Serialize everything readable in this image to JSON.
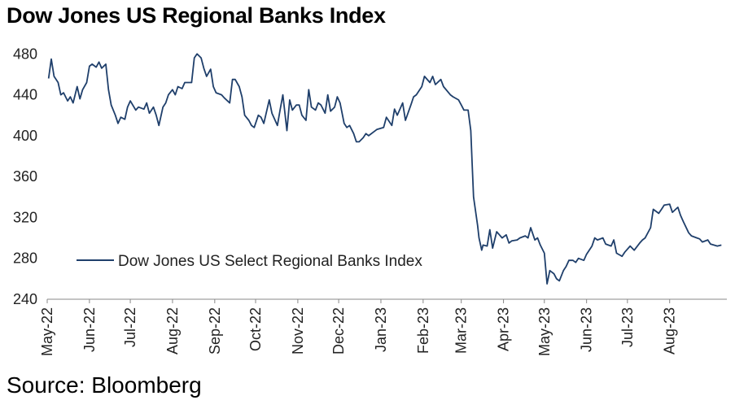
{
  "chart_data": {
    "type": "line",
    "title": "Dow Jones US Regional Banks Index",
    "source": "Source: Bloomberg",
    "ylim": [
      240,
      485
    ],
    "yticks": [
      480,
      440,
      400,
      360,
      320,
      280,
      240
    ],
    "x_range": [
      "2022-05-01",
      "2023-09-12"
    ],
    "xticks": [
      {
        "date": "2022-05-01",
        "label": "May-22"
      },
      {
        "date": "2022-06-01",
        "label": "Jun-22"
      },
      {
        "date": "2022-07-01",
        "label": "Jul-22"
      },
      {
        "date": "2022-08-01",
        "label": "Aug-22"
      },
      {
        "date": "2022-09-01",
        "label": "Sep-22"
      },
      {
        "date": "2022-10-01",
        "label": "Oct-22"
      },
      {
        "date": "2022-11-01",
        "label": "Nov-22"
      },
      {
        "date": "2022-12-01",
        "label": "Dec-22"
      },
      {
        "date": "2023-01-01",
        "label": "Jan-23"
      },
      {
        "date": "2023-02-01",
        "label": "Feb-23"
      },
      {
        "date": "2023-03-01",
        "label": "Mar-23"
      },
      {
        "date": "2023-04-01",
        "label": "Apr-23"
      },
      {
        "date": "2023-05-01",
        "label": "May-23"
      },
      {
        "date": "2023-06-01",
        "label": "Jun-23"
      },
      {
        "date": "2023-07-01",
        "label": "Jul-23"
      },
      {
        "date": "2023-08-01",
        "label": "Aug-23"
      }
    ],
    "grid": false,
    "legend_position": "bottom-left",
    "series": [
      {
        "name": "Dow Jones US Select Regional Banks Index",
        "color": "#1f3f6b",
        "points": [
          [
            "2022-05-02",
            456
          ],
          [
            "2022-05-04",
            475
          ],
          [
            "2022-05-06",
            458
          ],
          [
            "2022-05-09",
            452
          ],
          [
            "2022-05-11",
            440
          ],
          [
            "2022-05-13",
            442
          ],
          [
            "2022-05-16",
            434
          ],
          [
            "2022-05-18",
            438
          ],
          [
            "2022-05-20",
            432
          ],
          [
            "2022-05-23",
            448
          ],
          [
            "2022-05-25",
            436
          ],
          [
            "2022-05-27",
            445
          ],
          [
            "2022-05-30",
            452
          ],
          [
            "2022-06-01",
            468
          ],
          [
            "2022-06-03",
            470
          ],
          [
            "2022-06-06",
            467
          ],
          [
            "2022-06-08",
            472
          ],
          [
            "2022-06-10",
            466
          ],
          [
            "2022-06-13",
            470
          ],
          [
            "2022-06-15",
            445
          ],
          [
            "2022-06-17",
            430
          ],
          [
            "2022-06-20",
            420
          ],
          [
            "2022-06-22",
            412
          ],
          [
            "2022-06-24",
            418
          ],
          [
            "2022-06-27",
            416
          ],
          [
            "2022-06-29",
            428
          ],
          [
            "2022-07-01",
            434
          ],
          [
            "2022-07-05",
            425
          ],
          [
            "2022-07-07",
            428
          ],
          [
            "2022-07-11",
            426
          ],
          [
            "2022-07-13",
            432
          ],
          [
            "2022-07-15",
            422
          ],
          [
            "2022-07-18",
            428
          ],
          [
            "2022-07-20",
            420
          ],
          [
            "2022-07-22",
            410
          ],
          [
            "2022-07-25",
            428
          ],
          [
            "2022-07-27",
            432
          ],
          [
            "2022-07-29",
            440
          ],
          [
            "2022-08-01",
            445
          ],
          [
            "2022-08-03",
            440
          ],
          [
            "2022-08-05",
            448
          ],
          [
            "2022-08-08",
            446
          ],
          [
            "2022-08-10",
            452
          ],
          [
            "2022-08-12",
            452
          ],
          [
            "2022-08-15",
            452
          ],
          [
            "2022-08-17",
            476
          ],
          [
            "2022-08-19",
            480
          ],
          [
            "2022-08-22",
            476
          ],
          [
            "2022-08-24",
            466
          ],
          [
            "2022-08-26",
            458
          ],
          [
            "2022-08-29",
            465
          ],
          [
            "2022-08-31",
            448
          ],
          [
            "2022-09-02",
            442
          ],
          [
            "2022-09-06",
            440
          ],
          [
            "2022-09-08",
            437
          ],
          [
            "2022-09-12",
            432
          ],
          [
            "2022-09-14",
            455
          ],
          [
            "2022-09-16",
            455
          ],
          [
            "2022-09-19",
            448
          ],
          [
            "2022-09-21",
            438
          ],
          [
            "2022-09-23",
            420
          ],
          [
            "2022-09-26",
            415
          ],
          [
            "2022-09-28",
            410
          ],
          [
            "2022-09-30",
            408
          ],
          [
            "2022-10-03",
            420
          ],
          [
            "2022-10-05",
            418
          ],
          [
            "2022-10-07",
            412
          ],
          [
            "2022-10-11",
            435
          ],
          [
            "2022-10-13",
            422
          ],
          [
            "2022-10-17",
            410
          ],
          [
            "2022-10-19",
            425
          ],
          [
            "2022-10-21",
            440
          ],
          [
            "2022-10-24",
            405
          ],
          [
            "2022-10-26",
            435
          ],
          [
            "2022-10-28",
            425
          ],
          [
            "2022-10-31",
            430
          ],
          [
            "2022-11-02",
            430
          ],
          [
            "2022-11-04",
            420
          ],
          [
            "2022-11-07",
            415
          ],
          [
            "2022-11-09",
            445
          ],
          [
            "2022-11-11",
            428
          ],
          [
            "2022-11-14",
            425
          ],
          [
            "2022-11-16",
            432
          ],
          [
            "2022-11-18",
            430
          ],
          [
            "2022-11-21",
            422
          ],
          [
            "2022-11-23",
            440
          ],
          [
            "2022-11-25",
            424
          ],
          [
            "2022-11-28",
            428
          ],
          [
            "2022-11-30",
            438
          ],
          [
            "2022-12-02",
            432
          ],
          [
            "2022-12-05",
            412
          ],
          [
            "2022-12-07",
            408
          ],
          [
            "2022-12-09",
            410
          ],
          [
            "2022-12-12",
            402
          ],
          [
            "2022-12-14",
            394
          ],
          [
            "2022-12-16",
            394
          ],
          [
            "2022-12-19",
            398
          ],
          [
            "2022-12-21",
            402
          ],
          [
            "2022-12-23",
            400
          ],
          [
            "2022-12-27",
            404
          ],
          [
            "2022-12-29",
            406
          ],
          [
            "2023-01-03",
            408
          ],
          [
            "2023-01-05",
            418
          ],
          [
            "2023-01-09",
            410
          ],
          [
            "2023-01-11",
            426
          ],
          [
            "2023-01-13",
            420
          ],
          [
            "2023-01-17",
            432
          ],
          [
            "2023-01-19",
            415
          ],
          [
            "2023-01-23",
            430
          ],
          [
            "2023-01-25",
            438
          ],
          [
            "2023-01-27",
            440
          ],
          [
            "2023-01-31",
            448
          ],
          [
            "2023-02-02",
            458
          ],
          [
            "2023-02-06",
            452
          ],
          [
            "2023-02-08",
            458
          ],
          [
            "2023-02-10",
            450
          ],
          [
            "2023-02-14",
            455
          ],
          [
            "2023-02-16",
            448
          ],
          [
            "2023-02-21",
            440
          ],
          [
            "2023-02-23",
            438
          ],
          [
            "2023-02-27",
            435
          ],
          [
            "2023-03-01",
            430
          ],
          [
            "2023-03-03",
            425
          ],
          [
            "2023-03-06",
            425
          ],
          [
            "2023-03-08",
            405
          ],
          [
            "2023-03-09",
            372
          ],
          [
            "2023-03-10",
            340
          ],
          [
            "2023-03-13",
            312
          ],
          [
            "2023-03-14",
            300
          ],
          [
            "2023-03-16",
            288
          ],
          [
            "2023-03-17",
            293
          ],
          [
            "2023-03-20",
            292
          ],
          [
            "2023-03-22",
            308
          ],
          [
            "2023-03-24",
            290
          ],
          [
            "2023-03-27",
            306
          ],
          [
            "2023-03-29",
            303
          ],
          [
            "2023-03-31",
            300
          ],
          [
            "2023-04-03",
            303
          ],
          [
            "2023-04-05",
            295
          ],
          [
            "2023-04-07",
            297
          ],
          [
            "2023-04-11",
            298
          ],
          [
            "2023-04-13",
            300
          ],
          [
            "2023-04-17",
            302
          ],
          [
            "2023-04-19",
            300
          ],
          [
            "2023-04-21",
            310
          ],
          [
            "2023-04-24",
            298
          ],
          [
            "2023-04-26",
            300
          ],
          [
            "2023-04-28",
            293
          ],
          [
            "2023-05-01",
            285
          ],
          [
            "2023-05-03",
            255
          ],
          [
            "2023-05-05",
            268
          ],
          [
            "2023-05-08",
            265
          ],
          [
            "2023-05-10",
            260
          ],
          [
            "2023-05-12",
            258
          ],
          [
            "2023-05-15",
            268
          ],
          [
            "2023-05-17",
            272
          ],
          [
            "2023-05-19",
            278
          ],
          [
            "2023-05-22",
            278
          ],
          [
            "2023-05-24",
            276
          ],
          [
            "2023-05-26",
            280
          ],
          [
            "2023-05-30",
            278
          ],
          [
            "2023-06-01",
            284
          ],
          [
            "2023-06-05",
            292
          ],
          [
            "2023-06-07",
            300
          ],
          [
            "2023-06-09",
            298
          ],
          [
            "2023-06-13",
            300
          ],
          [
            "2023-06-15",
            294
          ],
          [
            "2023-06-19",
            292
          ],
          [
            "2023-06-21",
            298
          ],
          [
            "2023-06-23",
            285
          ],
          [
            "2023-06-27",
            282
          ],
          [
            "2023-06-29",
            286
          ],
          [
            "2023-07-03",
            292
          ],
          [
            "2023-07-06",
            288
          ],
          [
            "2023-07-10",
            295
          ],
          [
            "2023-07-12",
            298
          ],
          [
            "2023-07-14",
            300
          ],
          [
            "2023-07-18",
            310
          ],
          [
            "2023-07-20",
            328
          ],
          [
            "2023-07-24",
            324
          ],
          [
            "2023-07-26",
            328
          ],
          [
            "2023-07-28",
            332
          ],
          [
            "2023-08-01",
            333
          ],
          [
            "2023-08-03",
            325
          ],
          [
            "2023-08-07",
            330
          ],
          [
            "2023-08-09",
            322
          ],
          [
            "2023-08-11",
            316
          ],
          [
            "2023-08-15",
            305
          ],
          [
            "2023-08-17",
            302
          ],
          [
            "2023-08-21",
            300
          ],
          [
            "2023-08-23",
            299
          ],
          [
            "2023-08-25",
            296
          ],
          [
            "2023-08-29",
            298
          ],
          [
            "2023-08-31",
            294
          ],
          [
            "2023-09-05",
            292
          ],
          [
            "2023-09-08",
            293
          ]
        ]
      }
    ]
  }
}
